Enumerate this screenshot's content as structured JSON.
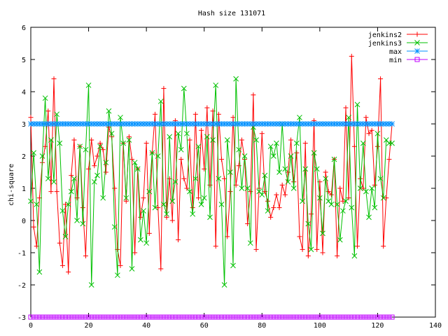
{
  "chart_data": {
    "type": "line",
    "title": "Hash size 131071",
    "xlabel": "",
    "ylabel": "chi-square",
    "xlim": [
      0,
      140
    ],
    "ylim": [
      -3,
      6
    ],
    "xticks": [
      0,
      20,
      40,
      60,
      80,
      100,
      120,
      140
    ],
    "yticks": [
      -3,
      -2,
      -1,
      0,
      1,
      2,
      3,
      4,
      5,
      6
    ],
    "grid": false,
    "legend_position": "top-right",
    "series": [
      {
        "name": "jenkins2",
        "color": "#ff0000",
        "marker": "plus",
        "x": [
          0,
          1,
          2,
          3,
          4,
          5,
          6,
          7,
          8,
          9,
          10,
          11,
          12,
          13,
          14,
          15,
          16,
          17,
          18,
          19,
          20,
          21,
          22,
          23,
          24,
          25,
          26,
          27,
          28,
          29,
          30,
          31,
          32,
          33,
          34,
          35,
          36,
          37,
          38,
          39,
          40,
          41,
          42,
          43,
          44,
          45,
          46,
          47,
          48,
          49,
          50,
          51,
          52,
          53,
          54,
          55,
          56,
          57,
          58,
          59,
          60,
          61,
          62,
          63,
          64,
          65,
          66,
          67,
          68,
          69,
          70,
          71,
          72,
          73,
          74,
          75,
          76,
          77,
          78,
          79,
          80,
          81,
          82,
          83,
          84,
          85,
          86,
          87,
          88,
          89,
          90,
          91,
          92,
          93,
          94,
          95,
          96,
          97,
          98,
          99,
          100,
          101,
          102,
          103,
          104,
          105,
          106,
          107,
          108,
          109,
          110,
          111,
          112,
          113,
          114,
          115,
          116,
          117,
          118,
          119,
          120,
          121,
          122,
          123,
          124,
          125
        ],
        "y": [
          3.2,
          -0.2,
          -0.8,
          0.7,
          1.8,
          2.3,
          3.4,
          0.9,
          4.4,
          0.9,
          -0.7,
          -1.4,
          0.5,
          -1.6,
          1.4,
          2.5,
          0.7,
          2.3,
          0.4,
          -1.1,
          1.6,
          2.5,
          1.7,
          2.0,
          2.4,
          2.2,
          1.5,
          2.9,
          2.6,
          1.0,
          -0.9,
          -1.4,
          2.4,
          0.6,
          2.6,
          1.9,
          -1.0,
          1.6,
          0.1,
          0.7,
          2.4,
          -0.4,
          2.1,
          3.3,
          0.4,
          -1.5,
          4.1,
          0.1,
          1.3,
          0.0,
          3.1,
          -0.6,
          1.9,
          1.3,
          1.0,
          2.5,
          0.4,
          3.3,
          0.7,
          2.8,
          1.6,
          3.5,
          1.1,
          3.4,
          -0.8,
          3.3,
          1.9,
          1.3,
          -0.5,
          0.9,
          3.2,
          1.1,
          1.7,
          2.5,
          1.9,
          -0.1,
          0.9,
          3.9,
          -0.9,
          1.0,
          2.7,
          0.9,
          0.6,
          0.1,
          0.4,
          0.8,
          0.4,
          1.1,
          0.8,
          1.5,
          2.5,
          1.2,
          2.1,
          -0.5,
          -0.9,
          2.4,
          -1.1,
          0.2,
          3.1,
          -0.9,
          1.2,
          -1.0,
          1.5,
          0.9,
          0.8,
          1.9,
          -1.1,
          1.0,
          0.6,
          3.5,
          0.7,
          5.1,
          2.3,
          -0.8,
          1.3,
          1.0,
          3.2,
          2.7,
          2.8,
          1.1,
          2.3,
          4.4,
          -0.8,
          0.7,
          1.9,
          3.0
        ],
        "values_estimated": true
      },
      {
        "name": "jenkins3",
        "color": "#00c000",
        "marker": "cross",
        "x": [
          0,
          1,
          2,
          3,
          4,
          5,
          6,
          7,
          8,
          9,
          10,
          11,
          12,
          13,
          14,
          15,
          16,
          17,
          18,
          19,
          20,
          21,
          22,
          23,
          24,
          25,
          26,
          27,
          28,
          29,
          30,
          31,
          32,
          33,
          34,
          35,
          36,
          37,
          38,
          39,
          40,
          41,
          42,
          43,
          44,
          45,
          46,
          47,
          48,
          49,
          50,
          51,
          52,
          53,
          54,
          55,
          56,
          57,
          58,
          59,
          60,
          61,
          62,
          63,
          64,
          65,
          66,
          67,
          68,
          69,
          70,
          71,
          72,
          73,
          74,
          75,
          76,
          77,
          78,
          79,
          80,
          81,
          82,
          83,
          84,
          85,
          86,
          87,
          88,
          89,
          90,
          91,
          92,
          93,
          94,
          95,
          96,
          97,
          98,
          99,
          100,
          101,
          102,
          103,
          104,
          105,
          106,
          107,
          108,
          109,
          110,
          111,
          112,
          113,
          114,
          115,
          116,
          117,
          118,
          119,
          120,
          121,
          122,
          123,
          124,
          125
        ],
        "y": [
          0.6,
          2.1,
          0.5,
          -1.6,
          2.0,
          3.8,
          1.3,
          2.5,
          1.2,
          3.3,
          2.4,
          0.3,
          -0.5,
          0.5,
          0.9,
          1.3,
          0.0,
          2.3,
          -0.1,
          2.2,
          4.2,
          -2.0,
          1.2,
          1.4,
          2.3,
          0.7,
          1.8,
          3.4,
          2.7,
          -0.2,
          -1.7,
          3.2,
          2.4,
          0.7,
          2.5,
          -1.5,
          1.8,
          1.6,
          -0.6,
          0.3,
          -0.7,
          0.9,
          2.1,
          0.4,
          2.0,
          3.7,
          0.5,
          0.2,
          2.6,
          0.6,
          1.2,
          2.7,
          2.2,
          4.1,
          2.7,
          0.9,
          0.2,
          1.3,
          2.3,
          0.5,
          0.7,
          2.6,
          0.1,
          2.5,
          4.2,
          1.3,
          0.5,
          -2.0,
          2.5,
          1.5,
          -1.4,
          4.4,
          2.2,
          1.0,
          2.0,
          1.0,
          -0.7,
          2.9,
          2.5,
          0.9,
          0.8,
          1.4,
          0.3,
          2.3,
          2.0,
          2.4,
          1.5,
          3.0,
          1.6,
          1.2,
          2.0,
          1.0,
          2.4,
          3.2,
          0.6,
          1.6,
          -0.1,
          -0.9,
          2.1,
          1.6,
          0.7,
          -0.4,
          1.3,
          0.6,
          0.5,
          1.9,
          0.5,
          -0.6,
          0.3,
          0.6,
          3.2,
          0.4,
          -1.1,
          3.6,
          1.0,
          2.4,
          0.9,
          0.1,
          1.0,
          0.4,
          2.7,
          1.3,
          0.7,
          2.5,
          2.4,
          2.4
        ],
        "values_estimated": true
      },
      {
        "name": "max",
        "color": "#0090ff",
        "marker": "star",
        "x_range": [
          0,
          125
        ],
        "y_constant": 3.0
      },
      {
        "name": "min",
        "color": "#c000ff",
        "marker": "square",
        "x_range": [
          0,
          125
        ],
        "y_constant": -3.0
      }
    ]
  }
}
